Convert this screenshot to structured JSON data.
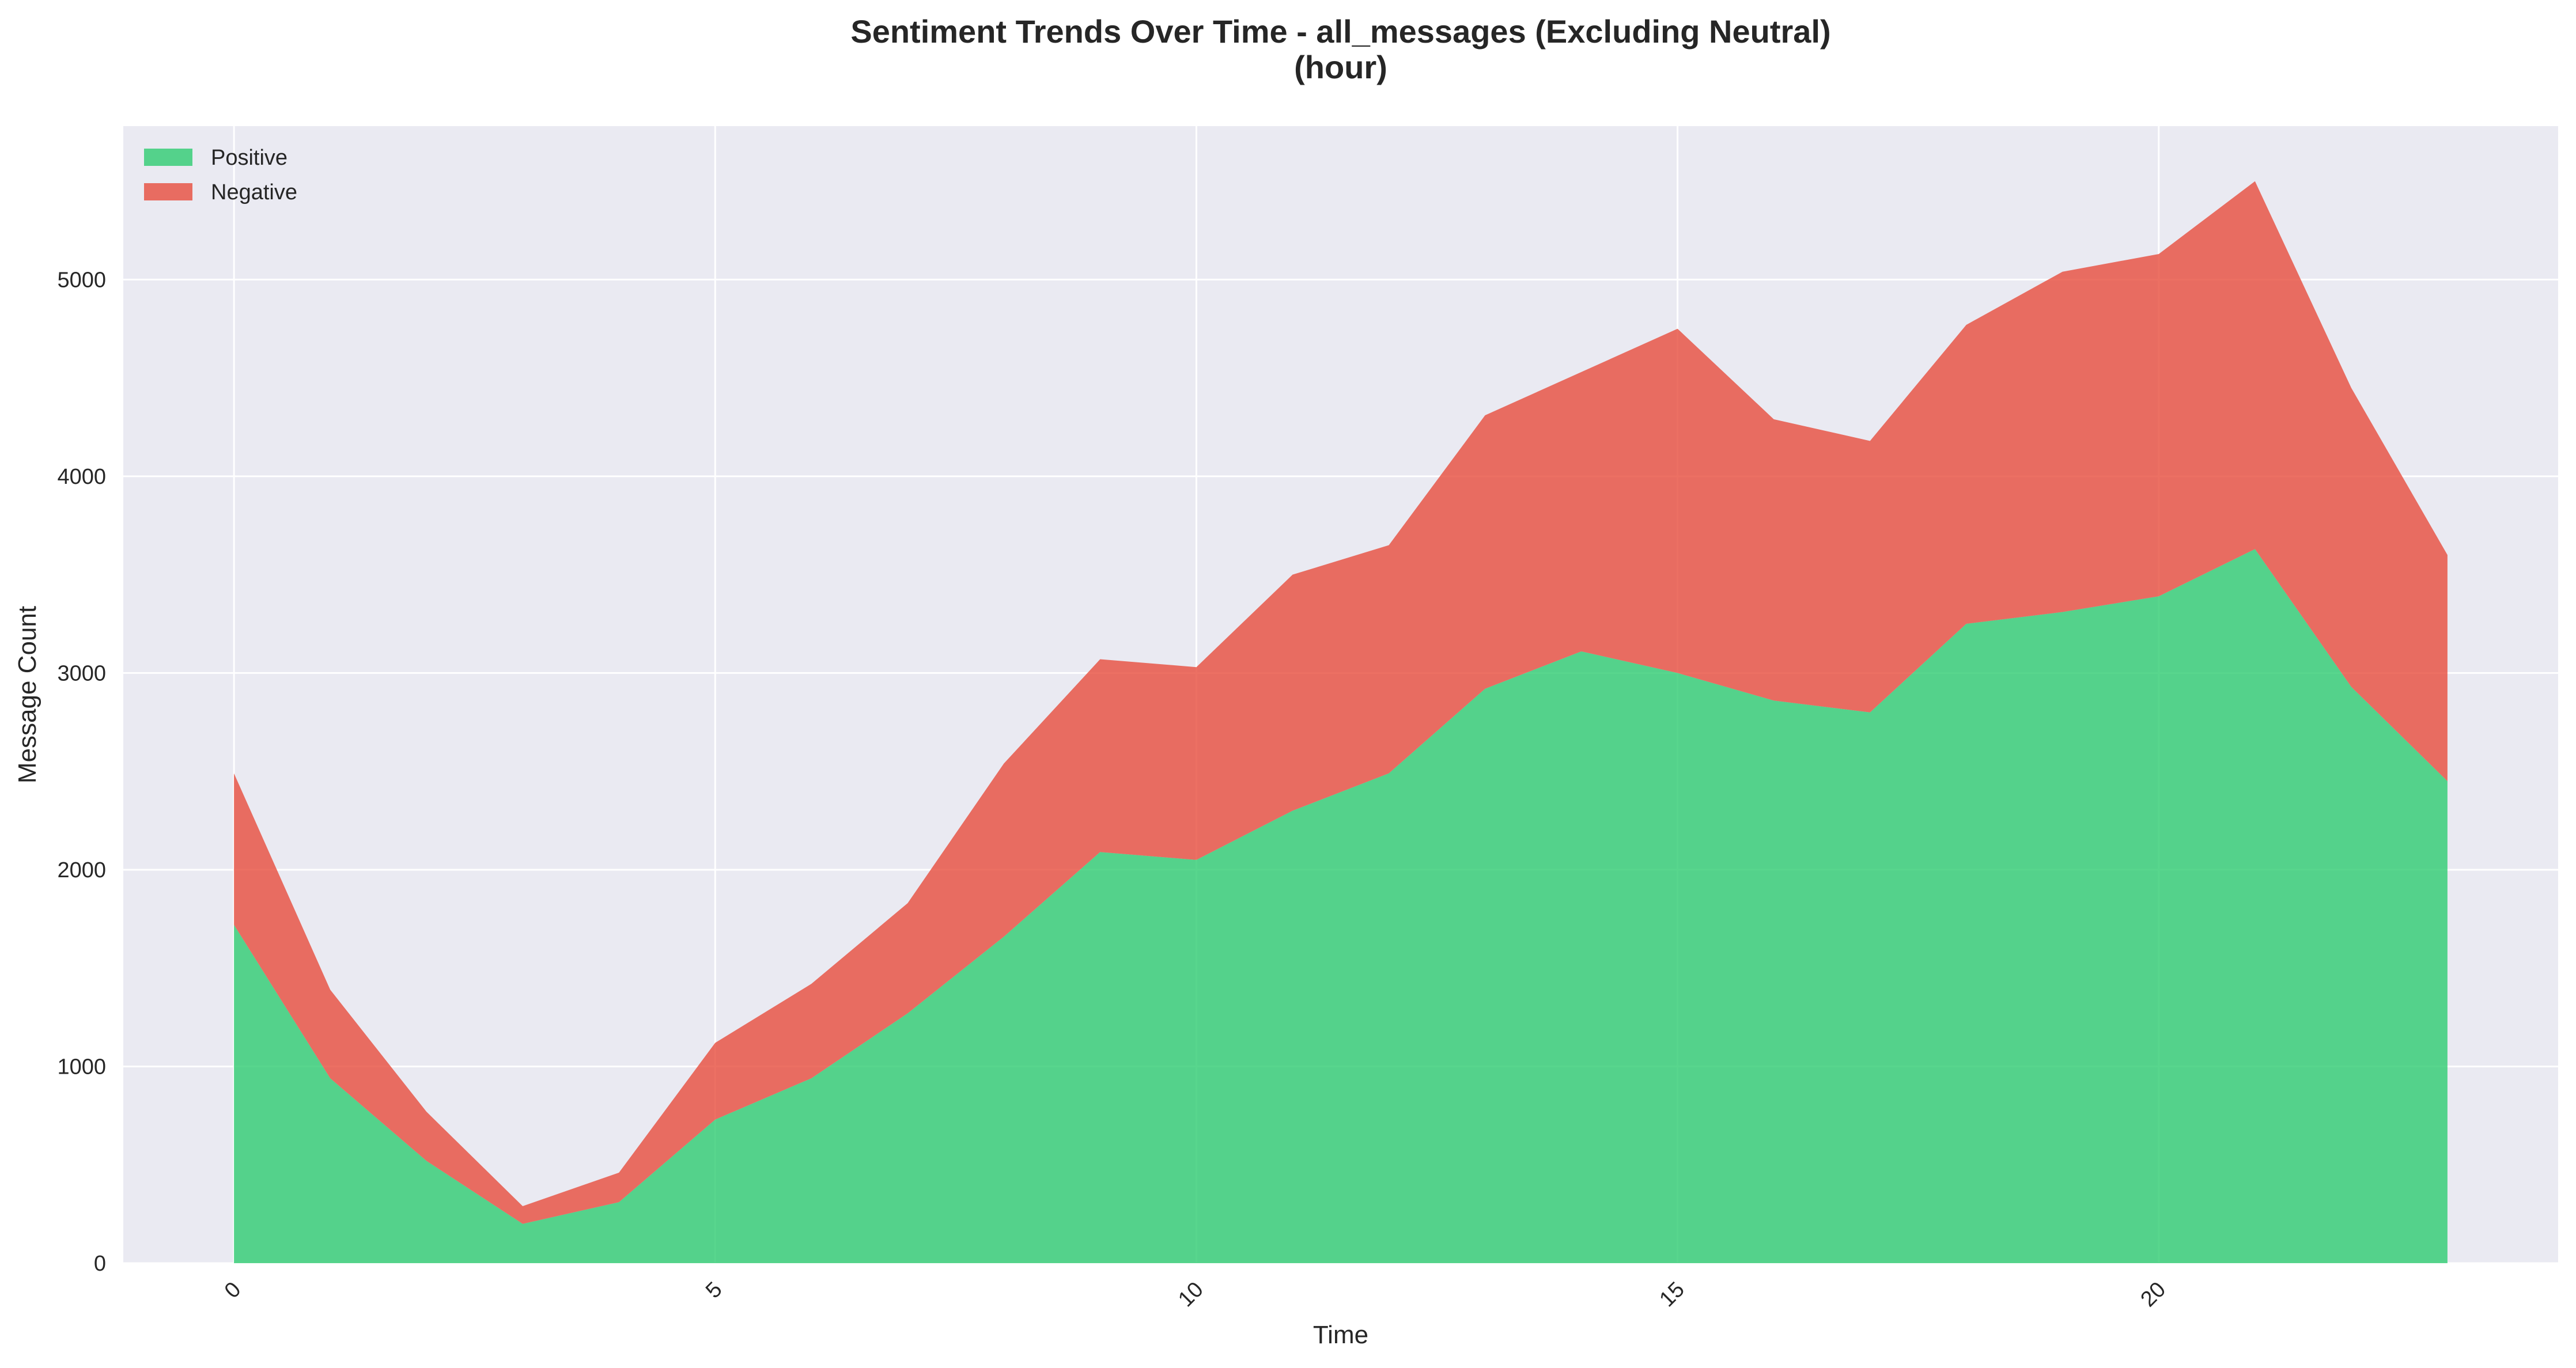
{
  "chart_data": {
    "type": "area",
    "stacked": true,
    "title": "Sentiment Trends Over Time - all_messages (Excluding Neutral)",
    "subtitle": "(hour)",
    "xlabel": "Time",
    "ylabel": "Message Count",
    "x": [
      0,
      1,
      2,
      3,
      4,
      5,
      6,
      7,
      8,
      9,
      10,
      11,
      12,
      13,
      14,
      15,
      16,
      17,
      18,
      19,
      20,
      21,
      22,
      23
    ],
    "x_ticks": [
      "0",
      "5",
      "10",
      "15",
      "20"
    ],
    "y_ticks": [
      "0",
      "1000",
      "2000",
      "3000",
      "4000",
      "5000"
    ],
    "xlim": [
      -1.15,
      24.15
    ],
    "ylim": [
      0,
      5780
    ],
    "grid": true,
    "legend_position": "top-left",
    "series": [
      {
        "name": "Positive",
        "color": "#2ecc71",
        "values": [
          1720,
          940,
          520,
          200,
          310,
          730,
          940,
          1270,
          1660,
          2090,
          2050,
          2300,
          2490,
          2920,
          3110,
          3000,
          2860,
          2800,
          3250,
          3310,
          3390,
          3630,
          2930,
          2450
        ]
      },
      {
        "name": "Negative",
        "color": "#e74c3c",
        "values": [
          770,
          450,
          250,
          90,
          150,
          390,
          480,
          560,
          880,
          980,
          980,
          1200,
          1160,
          1390,
          1420,
          1750,
          1430,
          1380,
          1520,
          1730,
          1740,
          1870,
          1520,
          1150
        ]
      }
    ]
  }
}
